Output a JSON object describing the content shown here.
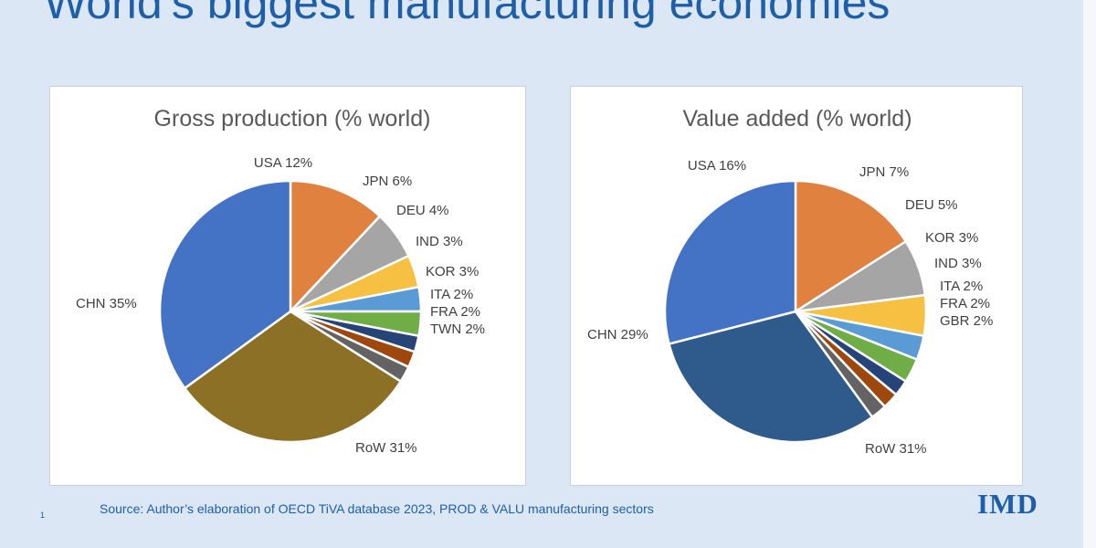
{
  "slide": {
    "title": "World’s biggest manufacturing economies",
    "source": "Source: Author’s elaboration of OECD   TiVA database 2023, PROD & VALU manufacturing sectors",
    "page_number": "1",
    "logo_text": "IMD"
  },
  "chart_data": [
    {
      "type": "pie",
      "title": "Gross production  (% world)",
      "slices": [
        {
          "label": "USA 12%",
          "name": "USA",
          "value": 12,
          "color": "#e0813f"
        },
        {
          "label": "JPN 6%",
          "name": "JPN",
          "value": 6,
          "color": "#a5a5a5"
        },
        {
          "label": "DEU 4%",
          "name": "DEU",
          "value": 4,
          "color": "#f6c143"
        },
        {
          "label": "IND 3%",
          "name": "IND",
          "value": 3,
          "color": "#5b9bd5"
        },
        {
          "label": "KOR 3%",
          "name": "KOR",
          "value": 3,
          "color": "#70ad47"
        },
        {
          "label": "ITA 2%",
          "name": "ITA",
          "value": 2,
          "color": "#264478"
        },
        {
          "label": "FRA 2%",
          "name": "FRA",
          "value": 2,
          "color": "#9e480e"
        },
        {
          "label": "TWN 2%",
          "name": "TWN",
          "value": 2,
          "color": "#636363"
        },
        {
          "label": "RoW 31%",
          "name": "RoW",
          "value": 31,
          "color": "#8c7025"
        },
        {
          "label": "CHN 35%",
          "name": "CHN",
          "value": 35,
          "color": "#4472c4"
        }
      ]
    },
    {
      "type": "pie",
      "title": "Value added (% world)",
      "slices": [
        {
          "label": "USA 16%",
          "name": "USA",
          "value": 16,
          "color": "#e0813f"
        },
        {
          "label": "JPN 7%",
          "name": "JPN",
          "value": 7,
          "color": "#a5a5a5"
        },
        {
          "label": "DEU 5%",
          "name": "DEU",
          "value": 5,
          "color": "#f6c143"
        },
        {
          "label": "KOR 3%",
          "name": "KOR",
          "value": 3,
          "color": "#5b9bd5"
        },
        {
          "label": "IND 3%",
          "name": "IND",
          "value": 3,
          "color": "#70ad47"
        },
        {
          "label": "ITA 2%",
          "name": "ITA",
          "value": 2,
          "color": "#264478"
        },
        {
          "label": "FRA 2%",
          "name": "FRA",
          "value": 2,
          "color": "#9e480e"
        },
        {
          "label": "GBR 2%",
          "name": "GBR",
          "value": 2,
          "color": "#636363"
        },
        {
          "label": "RoW 31%",
          "name": "RoW",
          "value": 31,
          "color": "#2f5b8c"
        },
        {
          "label": "CHN 29%",
          "name": "CHN",
          "value": 29,
          "color": "#4472c4"
        }
      ]
    }
  ]
}
